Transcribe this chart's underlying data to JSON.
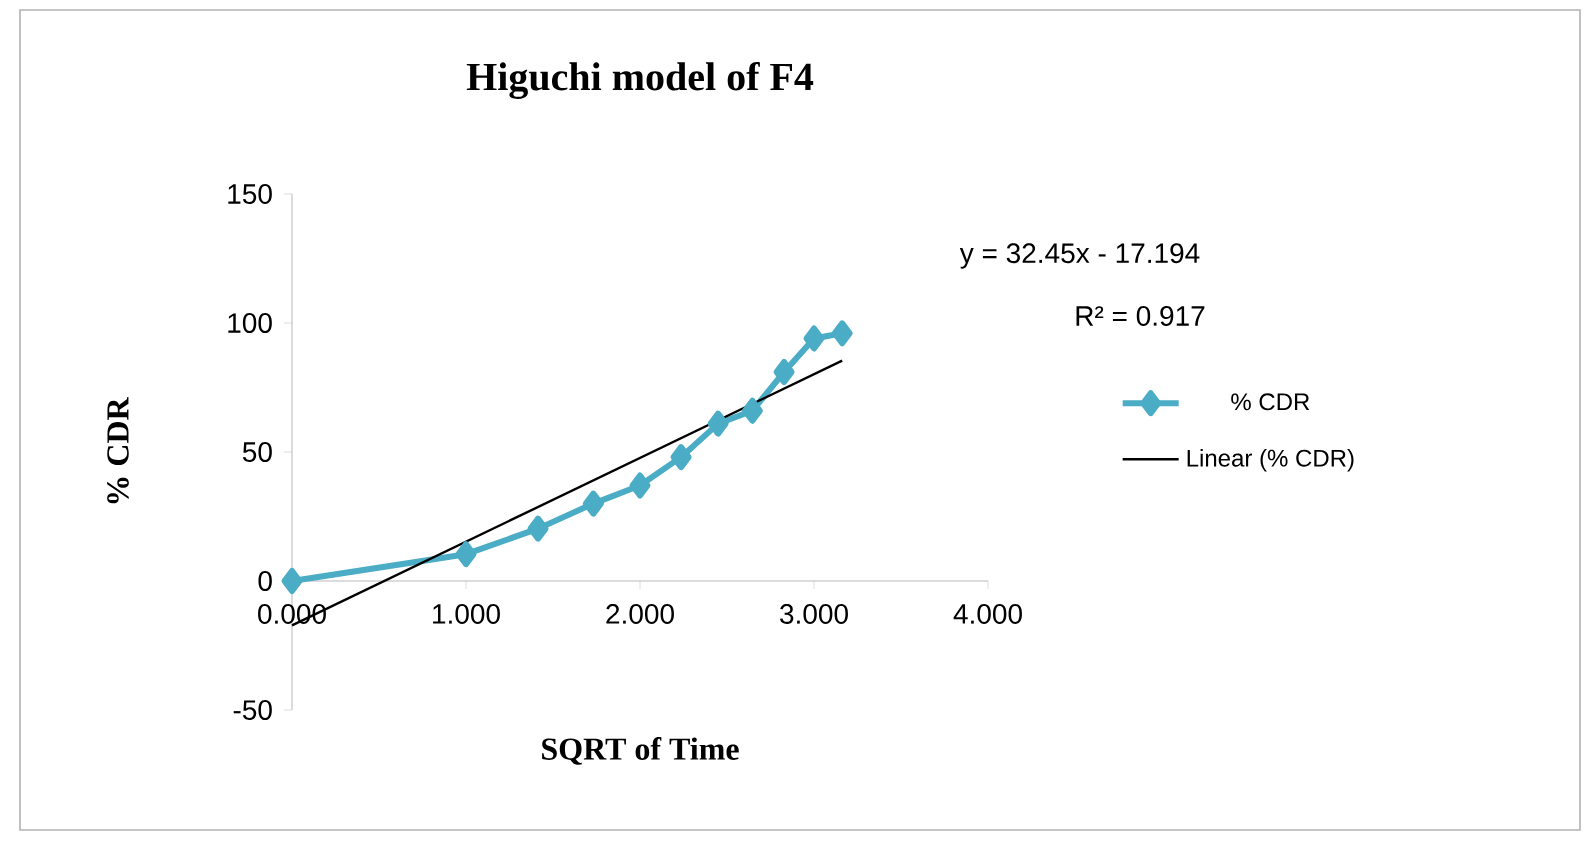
{
  "chart_data": {
    "type": "line",
    "title": "Higuchi model of F4",
    "xlabel": "SQRT of Time",
    "ylabel": "% CDR",
    "annotations": [
      "y = 32.45x - 17.194",
      "R² = 0.917"
    ],
    "xlim": [
      0,
      4
    ],
    "ylim": [
      -50,
      150
    ],
    "xticks": [
      {
        "value": 0,
        "label": "0.000"
      },
      {
        "value": 1,
        "label": "1.000"
      },
      {
        "value": 2,
        "label": "2.000"
      },
      {
        "value": 3,
        "label": "3.000"
      },
      {
        "value": 4,
        "label": "4.000"
      }
    ],
    "yticks": [
      -50,
      0,
      50,
      100,
      150
    ],
    "grid": false,
    "legend": "right",
    "series": [
      {
        "name": "% CDR",
        "color": "#4bacc6",
        "marker": "diamond",
        "x": [
          0,
          1,
          1.414,
          1.732,
          2,
          2.236,
          2.449,
          2.646,
          2.828,
          3,
          3.162
        ],
        "values": [
          0,
          10.4,
          20.3,
          30,
          37,
          48,
          61,
          66,
          81,
          94,
          96
        ]
      },
      {
        "name": "Linear (% CDR)",
        "color": "#000000",
        "marker": "none",
        "x": [
          0,
          3.162
        ],
        "values": [
          -17.2,
          85.4
        ]
      }
    ]
  }
}
